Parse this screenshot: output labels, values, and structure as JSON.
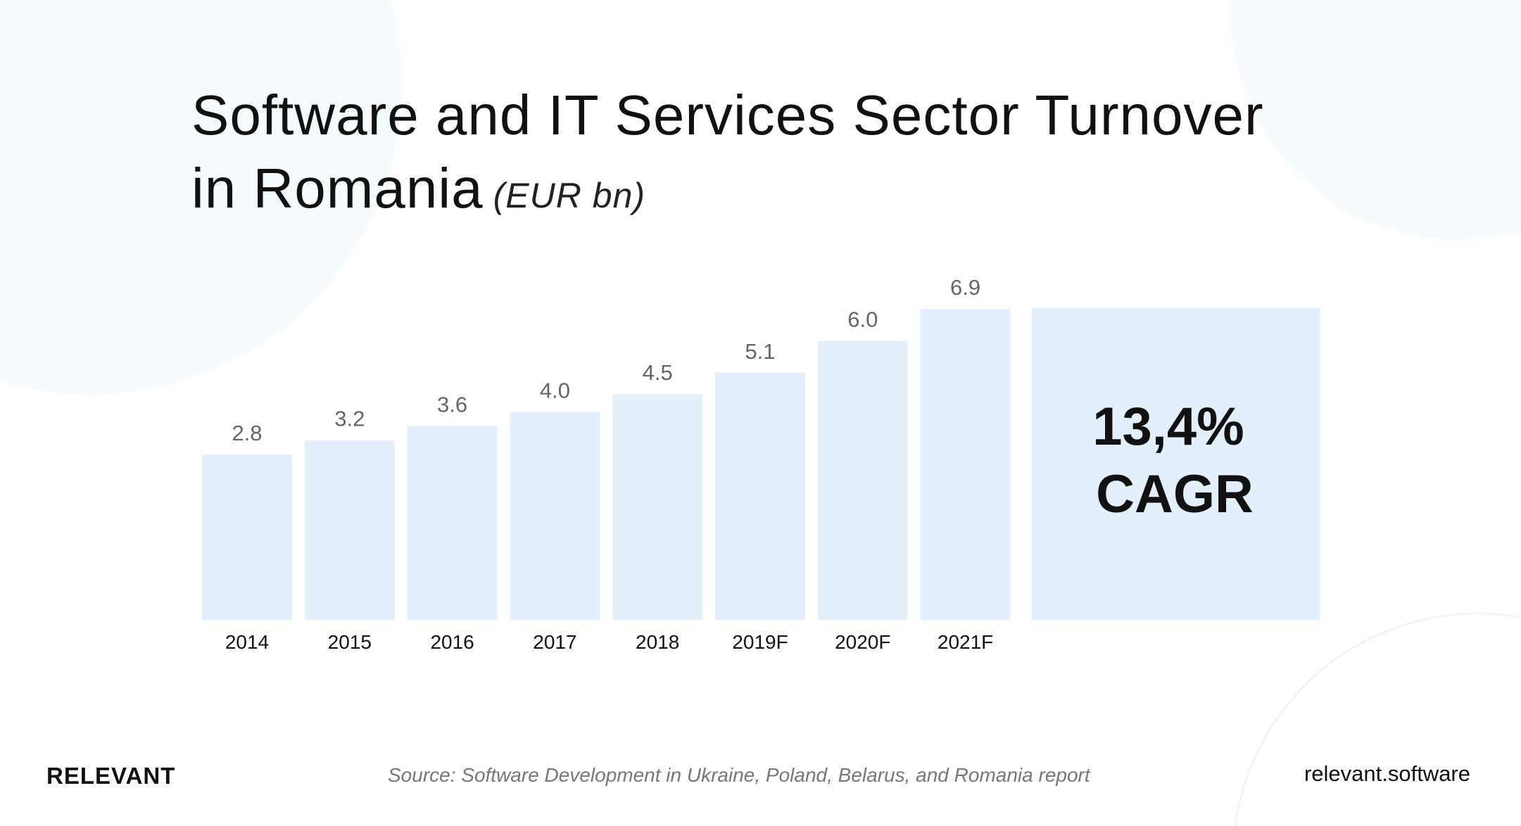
{
  "chart_data": {
    "type": "bar",
    "title": "Software and IT Services Sector Turnover in Romania",
    "title_line1": "Software and IT Services Sector Turnover",
    "title_line2": "in Romania",
    "unit": "(EUR bn)",
    "categories": [
      "2014",
      "2015",
      "2016",
      "2017",
      "2018",
      "2019F",
      "2020F",
      "2021F"
    ],
    "values": [
      2.8,
      3.2,
      3.6,
      4.0,
      4.5,
      5.1,
      6.0,
      6.9
    ],
    "value_labels": [
      "2.8",
      "3.2",
      "3.6",
      "4.0",
      "4.5",
      "5.1",
      "6.0",
      "6.9"
    ],
    "annotation": {
      "line1": "13,4%",
      "line2": "CAGR"
    },
    "bar_color": "#e3f0fb",
    "grid": false
  },
  "footer": {
    "logo": "RELEVANT",
    "source": "Source: Software Development in Ukraine, Poland, Belarus, and Romania report",
    "url": "relevant.software"
  }
}
